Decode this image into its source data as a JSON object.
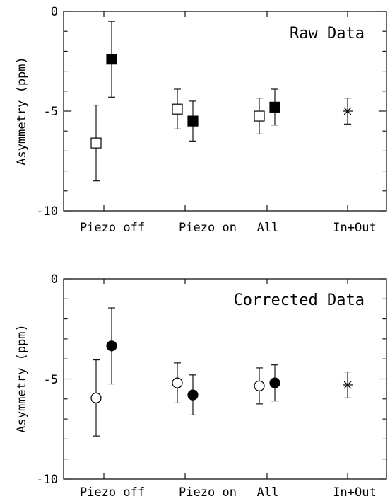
{
  "chart_data": [
    {
      "type": "scatter",
      "title": "Raw Data",
      "ylabel": "Asymmetry (ppm)",
      "xlabel": "",
      "ylim": [
        -10,
        0
      ],
      "yticks": [
        "0",
        "-5",
        "-10"
      ],
      "categories": [
        "Piezo off",
        "Piezo on",
        "All",
        "In+Out"
      ],
      "marker": "square",
      "grid": false,
      "series": [
        {
          "style": "open",
          "values": [
            {
              "category": "Piezo off",
              "y": -6.6,
              "err": 1.9
            },
            {
              "category": "Piezo on",
              "y": -4.9,
              "err": 1.0
            },
            {
              "category": "All",
              "y": -5.25,
              "err": 0.9
            }
          ]
        },
        {
          "style": "filled",
          "values": [
            {
              "category": "Piezo off",
              "y": -2.4,
              "err": 1.9
            },
            {
              "category": "Piezo on",
              "y": -5.5,
              "err": 1.0
            },
            {
              "category": "All",
              "y": -4.8,
              "err": 0.9
            }
          ]
        },
        {
          "style": "star",
          "values": [
            {
              "category": "In+Out",
              "y": -5.0,
              "err": 0.65
            }
          ]
        }
      ]
    },
    {
      "type": "scatter",
      "title": "Corrected Data",
      "ylabel": "Asymmetry (ppm)",
      "xlabel": "",
      "ylim": [
        -10,
        0
      ],
      "yticks": [
        "0",
        "-5",
        "-10"
      ],
      "categories": [
        "Piezo off",
        "Piezo on",
        "All",
        "In+Out"
      ],
      "marker": "circle",
      "grid": false,
      "series": [
        {
          "style": "open",
          "values": [
            {
              "category": "Piezo off",
              "y": -5.95,
              "err": 1.9
            },
            {
              "category": "Piezo on",
              "y": -5.2,
              "err": 1.0
            },
            {
              "category": "All",
              "y": -5.35,
              "err": 0.9
            }
          ]
        },
        {
          "style": "filled",
          "values": [
            {
              "category": "Piezo off",
              "y": -3.35,
              "err": 1.9
            },
            {
              "category": "Piezo on",
              "y": -5.8,
              "err": 1.0
            },
            {
              "category": "All",
              "y": -5.2,
              "err": 0.9
            }
          ]
        },
        {
          "style": "star",
          "values": [
            {
              "category": "In+Out",
              "y": -5.3,
              "err": 0.65
            }
          ]
        }
      ]
    }
  ]
}
